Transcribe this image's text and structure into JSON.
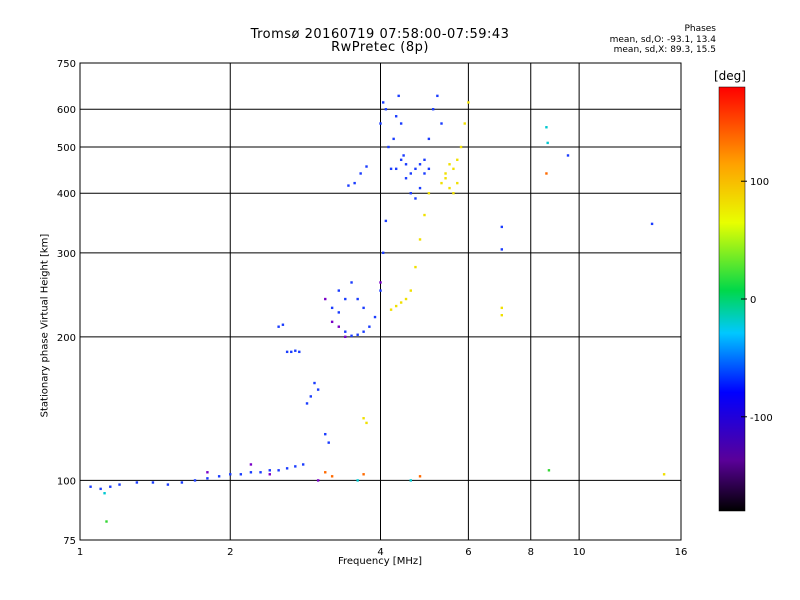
{
  "header": {
    "title_line1": "Tromsø 20160719 07:58:00-07:59:43",
    "title_line2": "RwPretec (8p)",
    "stats_title": "Phases",
    "stats_o": "mean, sd,O: -93.1, 13.4",
    "stats_x": "mean, sd,X: 89.3, 15.5"
  },
  "chart_data": {
    "type": "scatter",
    "title": "Tromsø 20160719 07:58:00-07:59:43",
    "subtitle": "RwPretec (8p)",
    "xlabel": "Frequency [MHz]",
    "ylabel": "Stationary phase Virtual Height [km]",
    "x_scale": "log",
    "y_scale": "log",
    "xlim": [
      1,
      16
    ],
    "ylim": [
      75,
      750
    ],
    "x_ticks": [
      1,
      2,
      4,
      6,
      8,
      10,
      16
    ],
    "y_ticks": [
      75,
      100,
      200,
      300,
      400,
      500,
      600,
      750
    ],
    "grid": true,
    "color_axis": {
      "unit": "[deg]",
      "ticks": [
        100,
        0,
        -100
      ],
      "range": [
        -180,
        180
      ]
    },
    "series": [
      {
        "phase_deg": -95,
        "color": "#1a3cff",
        "points": [
          [
            1.05,
            97
          ],
          [
            1.1,
            96
          ],
          [
            1.15,
            97
          ],
          [
            1.2,
            98
          ],
          [
            1.3,
            99
          ],
          [
            1.4,
            99
          ],
          [
            1.5,
            98
          ],
          [
            1.6,
            99
          ],
          [
            1.7,
            100
          ],
          [
            1.8,
            101
          ],
          [
            1.9,
            102
          ],
          [
            2.0,
            103
          ],
          [
            2.1,
            103
          ],
          [
            2.2,
            104
          ],
          [
            2.3,
            104
          ],
          [
            2.4,
            105
          ],
          [
            2.5,
            105
          ],
          [
            2.6,
            106
          ],
          [
            2.7,
            107
          ],
          [
            2.8,
            108
          ],
          [
            2.6,
            186
          ],
          [
            2.65,
            186
          ],
          [
            2.7,
            187
          ],
          [
            2.75,
            186
          ],
          [
            2.5,
            210
          ],
          [
            2.55,
            212
          ],
          [
            2.85,
            145
          ],
          [
            2.9,
            150
          ],
          [
            2.95,
            160
          ],
          [
            3.0,
            155
          ],
          [
            3.1,
            125
          ],
          [
            3.15,
            120
          ],
          [
            3.2,
            230
          ],
          [
            3.3,
            225
          ],
          [
            3.4,
            205
          ],
          [
            3.5,
            201
          ],
          [
            3.6,
            202
          ],
          [
            3.7,
            205
          ],
          [
            3.8,
            210
          ],
          [
            3.9,
            220
          ],
          [
            4.0,
            250
          ],
          [
            4.05,
            300
          ],
          [
            4.1,
            350
          ],
          [
            3.5,
            260
          ],
          [
            3.6,
            240
          ],
          [
            3.7,
            230
          ],
          [
            3.3,
            250
          ],
          [
            3.4,
            240
          ],
          [
            3.55,
            420
          ],
          [
            3.65,
            440
          ],
          [
            3.75,
            455
          ],
          [
            3.45,
            415
          ],
          [
            4.0,
            560
          ],
          [
            4.05,
            620
          ],
          [
            4.1,
            600
          ],
          [
            4.15,
            500
          ],
          [
            4.2,
            450
          ],
          [
            4.25,
            520
          ],
          [
            4.3,
            580
          ],
          [
            4.35,
            640
          ],
          [
            4.4,
            560
          ],
          [
            4.45,
            480
          ],
          [
            4.5,
            430
          ],
          [
            4.6,
            400
          ],
          [
            4.7,
            390
          ],
          [
            4.8,
            410
          ],
          [
            4.9,
            470
          ],
          [
            5.0,
            520
          ],
          [
            5.1,
            600
          ],
          [
            5.2,
            640
          ],
          [
            5.3,
            560
          ],
          [
            4.3,
            450
          ],
          [
            4.4,
            470
          ],
          [
            4.5,
            460
          ],
          [
            4.6,
            440
          ],
          [
            4.7,
            450
          ],
          [
            4.8,
            460
          ],
          [
            4.9,
            440
          ],
          [
            5.0,
            450
          ],
          [
            7.0,
            340
          ],
          [
            7.0,
            305
          ],
          [
            9.5,
            480
          ],
          [
            14.0,
            345
          ]
        ]
      },
      {
        "phase_deg": 90,
        "color": "#f0e000",
        "points": [
          [
            4.2,
            228
          ],
          [
            4.3,
            232
          ],
          [
            4.4,
            236
          ],
          [
            4.5,
            240
          ],
          [
            4.6,
            250
          ],
          [
            4.7,
            280
          ],
          [
            4.8,
            320
          ],
          [
            4.9,
            360
          ],
          [
            5.0,
            400
          ],
          [
            5.3,
            420
          ],
          [
            5.4,
            440
          ],
          [
            5.5,
            460
          ],
          [
            5.6,
            450
          ],
          [
            5.7,
            470
          ],
          [
            5.8,
            500
          ],
          [
            5.9,
            560
          ],
          [
            6.0,
            620
          ],
          [
            5.4,
            430
          ],
          [
            5.5,
            410
          ],
          [
            5.6,
            400
          ],
          [
            5.7,
            420
          ],
          [
            3.7,
            135
          ],
          [
            3.75,
            132
          ],
          [
            7.0,
            230
          ],
          [
            7.0,
            222
          ],
          [
            14.8,
            103
          ]
        ]
      },
      {
        "phase_deg": 30,
        "color": "#33d633",
        "points": [
          [
            1.13,
            82
          ],
          [
            8.7,
            105
          ]
        ]
      },
      {
        "phase_deg": 140,
        "color": "#ff6a00",
        "points": [
          [
            3.1,
            104
          ],
          [
            3.2,
            102
          ],
          [
            8.6,
            440
          ],
          [
            4.8,
            102
          ],
          [
            3.7,
            103
          ]
        ]
      },
      {
        "phase_deg": -140,
        "color": "#7a00c8",
        "points": [
          [
            2.2,
            108
          ],
          [
            2.4,
            103
          ],
          [
            3.0,
            100
          ],
          [
            3.1,
            240
          ],
          [
            3.2,
            215
          ],
          [
            3.3,
            210
          ],
          [
            3.4,
            200
          ],
          [
            4.0,
            260
          ],
          [
            1.8,
            104
          ]
        ]
      },
      {
        "phase_deg": 10,
        "color": "#00c8d0",
        "points": [
          [
            8.6,
            550
          ],
          [
            8.65,
            510
          ],
          [
            3.6,
            100
          ],
          [
            4.6,
            100
          ],
          [
            1.12,
            94
          ]
        ]
      }
    ]
  }
}
